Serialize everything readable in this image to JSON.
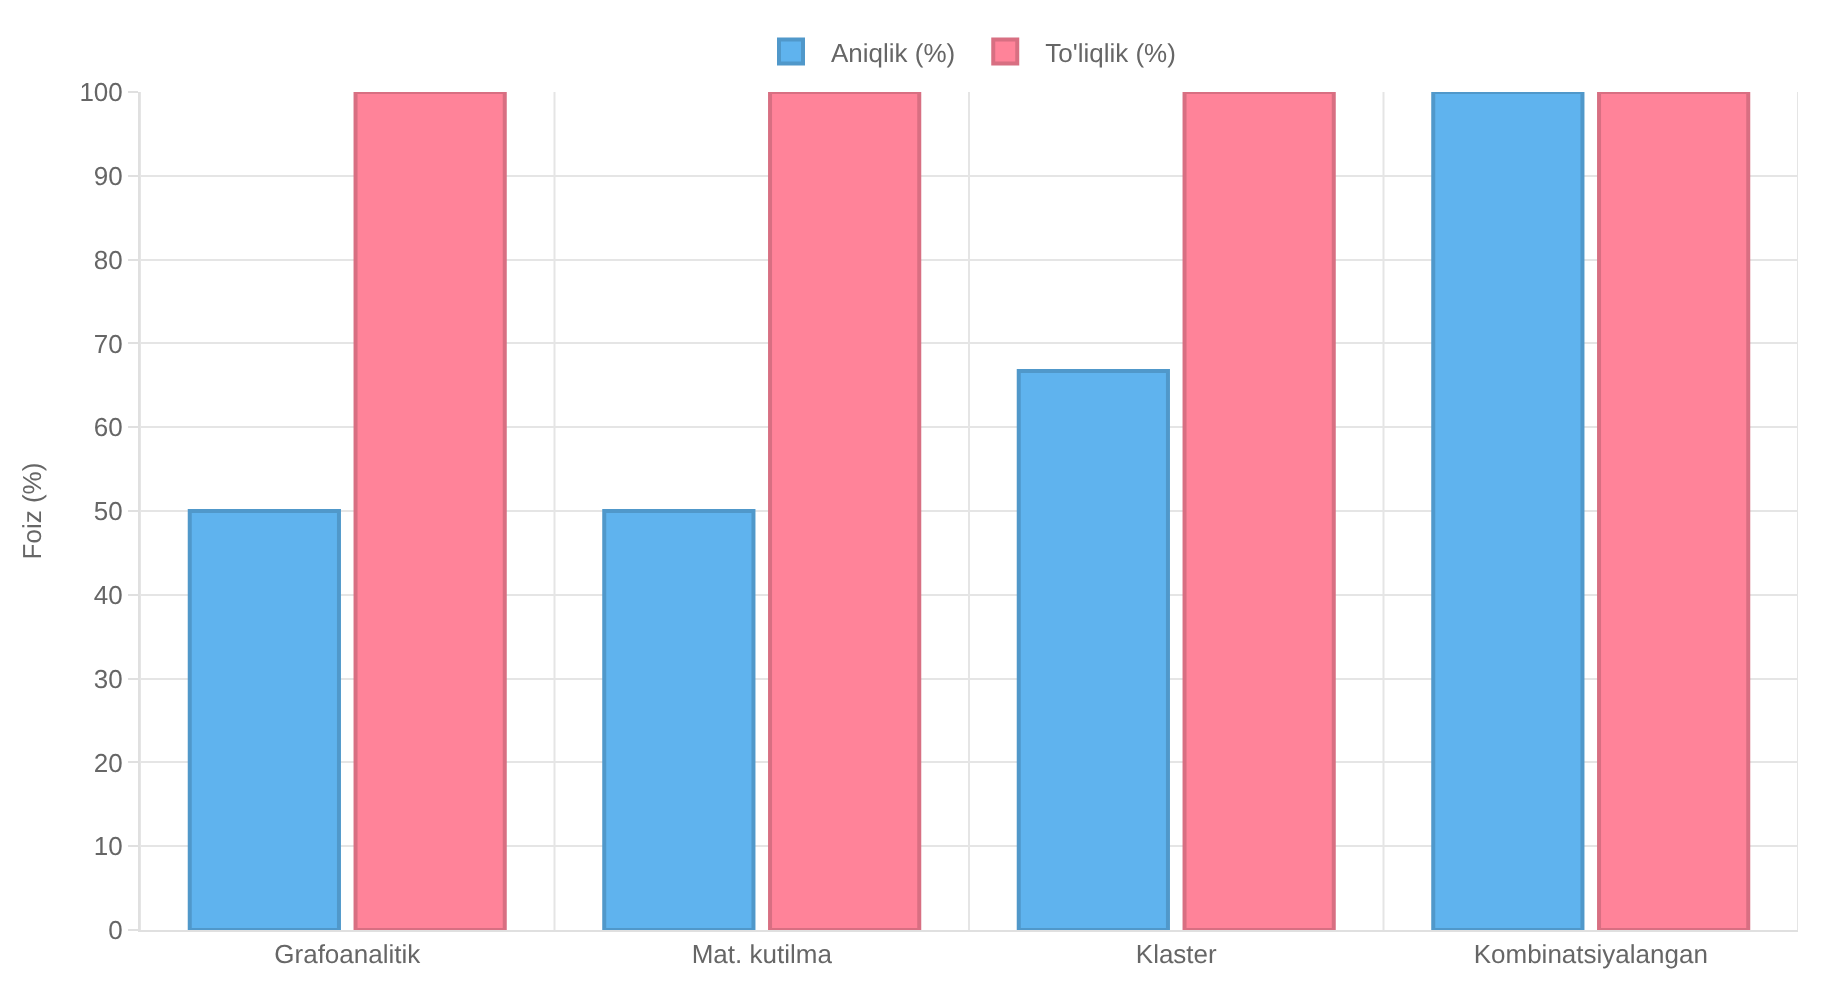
{
  "chart_data": {
    "type": "bar",
    "ylabel": "Foiz (%)",
    "categories": [
      "Grafoanalitik",
      "Mat. kutilma",
      "Klaster",
      "Kombinatsiyalangan"
    ],
    "series": [
      {
        "name": "Aniqlik (%)",
        "color": "#5fb3ee",
        "values": [
          50,
          50,
          66.7,
          100
        ]
      },
      {
        "name": "To'liqlik (%)",
        "color": "#ff8399",
        "values": [
          100,
          100,
          100,
          100
        ]
      }
    ],
    "ylim": [
      0,
      100
    ],
    "yticks": [
      0,
      10,
      20,
      30,
      40,
      50,
      60,
      70,
      80,
      90,
      100
    ],
    "grid": true,
    "legend": "top"
  }
}
